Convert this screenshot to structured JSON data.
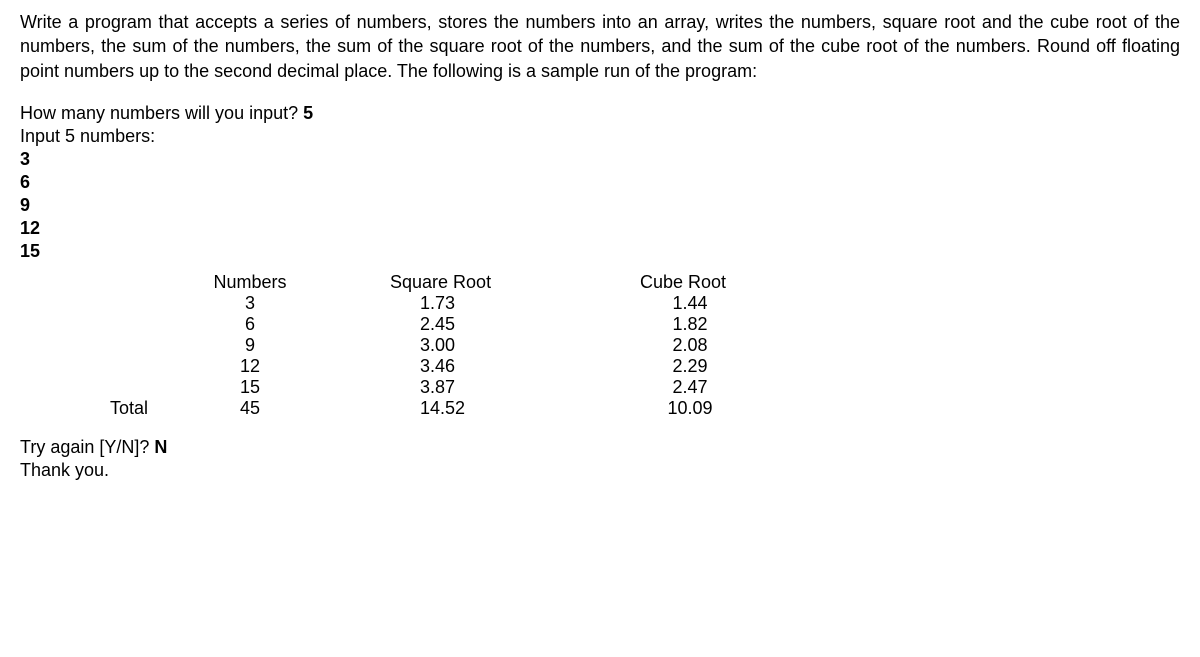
{
  "instructions": "Write a program that accepts a series of numbers, stores the numbers into an array, writes the numbers, square root and the cube root of the numbers, the sum of the numbers, the sum of the square root of the numbers, and the sum of the cube root of the numbers.  Round off floating point numbers up to the second decimal place.  The following is a sample run of the program:",
  "prompt": {
    "question_text": "How many numbers will you input? ",
    "question_answer": "5",
    "input_label": "Input 5 numbers:",
    "inputs": [
      "3",
      "6",
      "9",
      "12",
      "15"
    ]
  },
  "table": {
    "header_numbers": "Numbers",
    "header_sqrt": "Square Root",
    "header_cbrt": "Cube Root",
    "total_label": "Total",
    "rows": [
      {
        "n": "3",
        "sqrt": "1.73",
        "cbrt": "1.44"
      },
      {
        "n": "6",
        "sqrt": "2.45",
        "cbrt": "1.82"
      },
      {
        "n": "9",
        "sqrt": "3.00",
        "cbrt": "2.08"
      },
      {
        "n": "12",
        "sqrt": "3.46",
        "cbrt": "2.29"
      },
      {
        "n": "15",
        "sqrt": "3.87",
        "cbrt": "2.47"
      }
    ],
    "totals": {
      "n": "45",
      "sqrt": "14.52",
      "cbrt": "10.09"
    }
  },
  "footer": {
    "try_again_text": "Try again [Y/N]? ",
    "try_again_answer": "N",
    "thank_you": "Thank you."
  }
}
